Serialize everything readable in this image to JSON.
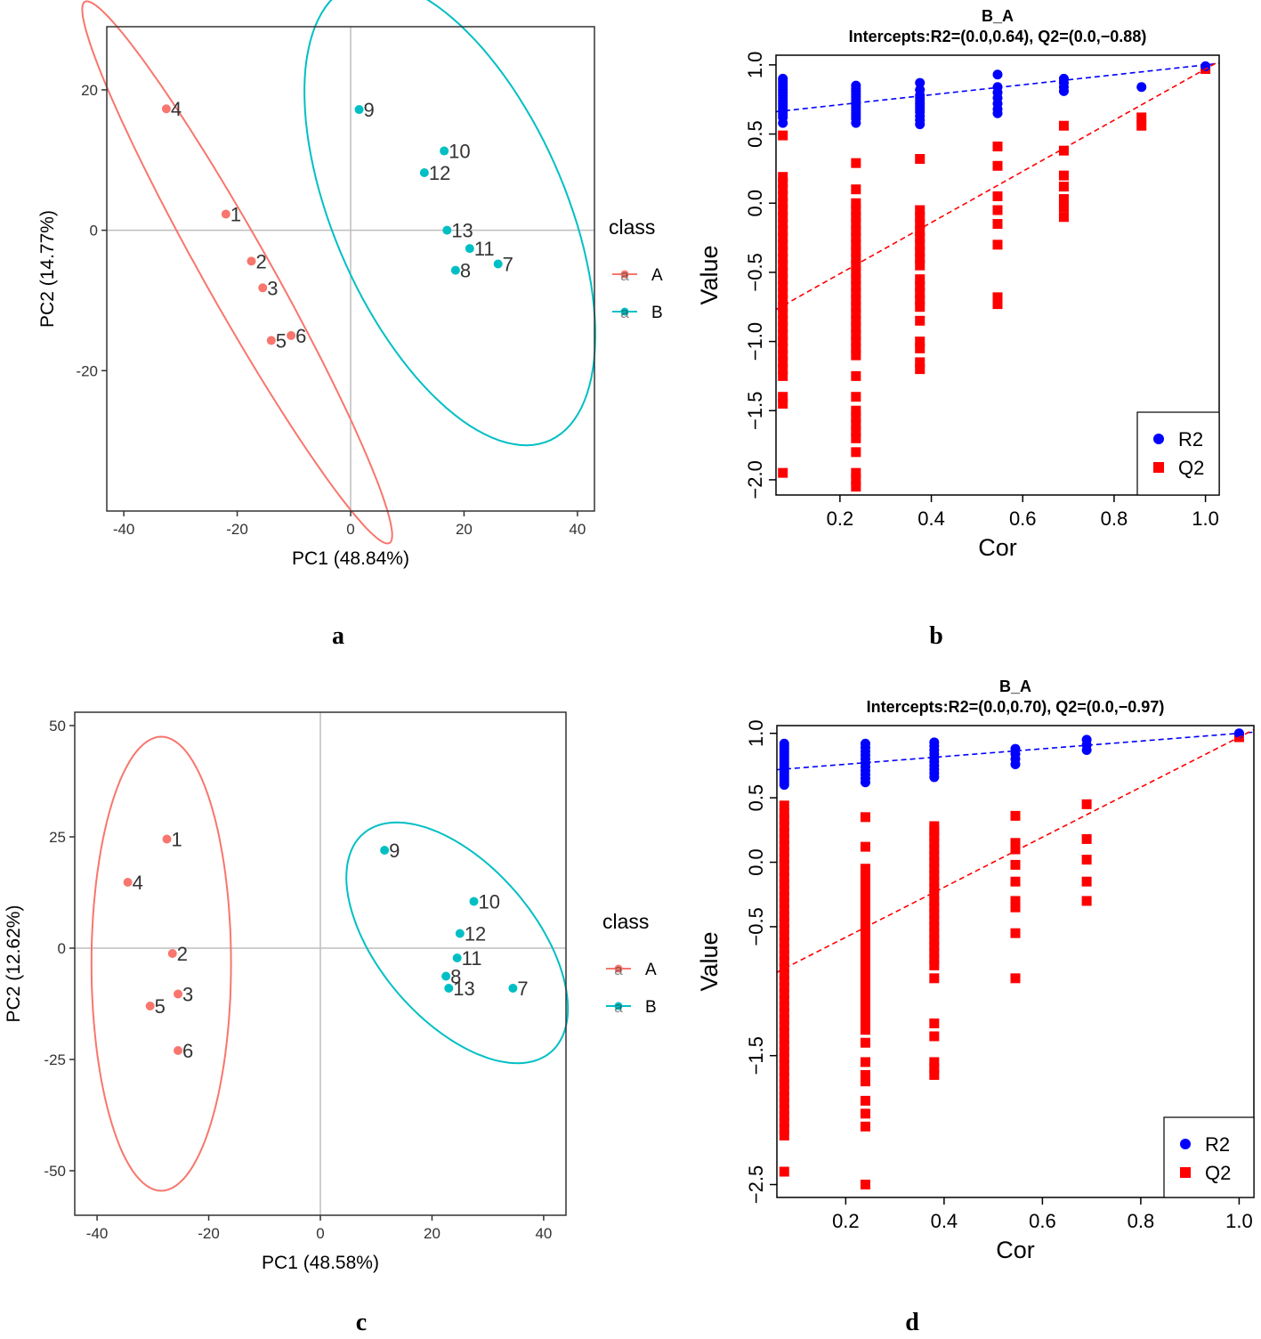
{
  "colors": {
    "class_A": "#F8766D",
    "class_B": "#00BFC4",
    "R2": "#0000FF",
    "Q2": "#FF0000",
    "grid_line": "#BEBEBE"
  },
  "chart_data": [
    {
      "panel": "a",
      "type": "scatter",
      "caption": "a",
      "xlabel": "PC1 (48.84%)",
      "ylabel": "PC2 (14.77%)",
      "xlim": [
        -43,
        43
      ],
      "ylim": [
        -40,
        29
      ],
      "xticks": [
        -40,
        -20,
        0,
        20,
        40
      ],
      "yticks": [
        -20,
        0,
        20
      ],
      "legend": {
        "title": "class",
        "glyph": "a",
        "entries": [
          "A",
          "B"
        ],
        "placement": "right"
      },
      "series": [
        {
          "name": "A",
          "color": "#F8766D",
          "points": [
            {
              "label": "1",
              "x": -22.0,
              "y": 2.3
            },
            {
              "label": "2",
              "x": -17.5,
              "y": -4.4
            },
            {
              "label": "3",
              "x": -15.5,
              "y": -8.2
            },
            {
              "label": "4",
              "x": -32.5,
              "y": 17.3
            },
            {
              "label": "5",
              "x": -14.0,
              "y": -15.7
            },
            {
              "label": "6",
              "x": -10.5,
              "y": -15.0
            }
          ],
          "ellipse": {
            "center": [
              -20,
              -6
            ],
            "semi_axes": [
              47,
              5.5
            ],
            "angle_deg": -55
          }
        },
        {
          "name": "B",
          "color": "#00BFC4",
          "points": [
            {
              "label": "7",
              "x": 26.0,
              "y": -4.8
            },
            {
              "label": "8",
              "x": 18.5,
              "y": -5.7
            },
            {
              "label": "9",
              "x": 1.5,
              "y": 17.2
            },
            {
              "label": "10",
              "x": 16.5,
              "y": 11.3
            },
            {
              "label": "11",
              "x": 21.0,
              "y": -2.6
            },
            {
              "label": "12",
              "x": 13.0,
              "y": 8.2
            },
            {
              "label": "13",
              "x": 17.0,
              "y": 0.0
            }
          ],
          "ellipse": {
            "center": [
              17.5,
              2.4
            ],
            "semi_axes": [
              37,
              19.5
            ],
            "angle_deg": -58
          }
        }
      ]
    },
    {
      "panel": "b",
      "type": "scatter",
      "caption": "b",
      "title": "B_A",
      "subtitle": "Intercepts:R2=(0.0,0.64), Q2=(0.0,−0.88)",
      "xlabel": "Cor",
      "ylabel": "Value",
      "xlim": [
        0.06,
        1.03
      ],
      "ylim": [
        -2.11,
        1.07
      ],
      "xticks": [
        "0.2",
        "0.4",
        "0.6",
        "0.8",
        "1.0"
      ],
      "yticks": [
        "−2.0",
        "−1.5",
        "−1.0",
        "−0.5",
        "0.0",
        "0.5",
        "1.0"
      ],
      "legend": {
        "entries": [
          "R2",
          "Q2"
        ],
        "placement": "bottom-right"
      },
      "regression_lines": [
        {
          "series": "R2",
          "intercept": 0.64,
          "end": [
            1.0,
            1.0
          ]
        },
        {
          "series": "Q2",
          "intercept": -0.88,
          "end": [
            1.0,
            0.97
          ]
        }
      ],
      "series": [
        {
          "name": "R2",
          "marker": "circle",
          "color": "#0000FF",
          "columns": [
            {
              "x": 0.075,
              "y": [
                0.9,
                0.88,
                0.86,
                0.84,
                0.82,
                0.8,
                0.78,
                0.76,
                0.74,
                0.72,
                0.7,
                0.68,
                0.66,
                0.64,
                0.62,
                0.58
              ]
            },
            {
              "x": 0.235,
              "y": [
                0.85,
                0.83,
                0.81,
                0.79,
                0.77,
                0.75,
                0.73,
                0.71,
                0.69,
                0.67,
                0.65,
                0.63,
                0.61,
                0.58
              ]
            },
            {
              "x": 0.375,
              "y": [
                0.87,
                0.82,
                0.78,
                0.76,
                0.74,
                0.72,
                0.7,
                0.68,
                0.66,
                0.63,
                0.6,
                0.57
              ]
            },
            {
              "x": 0.545,
              "y": [
                0.93,
                0.84,
                0.8,
                0.76,
                0.72,
                0.68,
                0.65
              ]
            },
            {
              "x": 0.69,
              "y": [
                0.9,
                0.87,
                0.84,
                0.81
              ]
            },
            {
              "x": 0.86,
              "y": [
                0.84
              ]
            },
            {
              "x": 1.0,
              "y": [
                0.99
              ]
            }
          ]
        },
        {
          "name": "Q2",
          "marker": "square",
          "color": "#FF0000",
          "columns": [
            {
              "x": 0.075,
              "y": [
                0.49,
                0.19,
                0.15,
                0.1,
                0.05,
                0.0,
                -0.05,
                -0.1,
                -0.15,
                -0.2,
                -0.25,
                -0.3,
                -0.35,
                -0.4,
                -0.45,
                -0.5,
                -0.55,
                -0.6,
                -0.65,
                -0.7,
                -0.75,
                -0.8,
                -0.85,
                -0.9,
                -0.95,
                -1.0,
                -1.05,
                -1.1,
                -1.15,
                -1.2,
                -1.25,
                -1.4,
                -1.45,
                -1.95
              ]
            },
            {
              "x": 0.235,
              "y": [
                0.29,
                0.1,
                0.0,
                -0.05,
                -0.1,
                -0.15,
                -0.2,
                -0.25,
                -0.3,
                -0.35,
                -0.4,
                -0.45,
                -0.5,
                -0.55,
                -0.6,
                -0.65,
                -0.7,
                -0.75,
                -0.8,
                -0.85,
                -0.9,
                -0.95,
                -1.0,
                -1.05,
                -1.1,
                -1.25,
                -1.4,
                -1.5,
                -1.55,
                -1.6,
                -1.65,
                -1.7,
                -1.8,
                -1.95,
                -2.0,
                -2.05
              ]
            },
            {
              "x": 0.375,
              "y": [
                0.32,
                -0.05,
                -0.1,
                -0.15,
                -0.2,
                -0.25,
                -0.3,
                -0.35,
                -0.4,
                -0.45,
                -0.55,
                -0.6,
                -0.65,
                -0.7,
                -0.75,
                -0.85,
                -1.0,
                -1.05,
                -1.15,
                -1.2
              ]
            },
            {
              "x": 0.545,
              "y": [
                0.41,
                0.27,
                0.05,
                -0.05,
                -0.15,
                -0.3,
                -0.68,
                -0.73
              ]
            },
            {
              "x": 0.69,
              "y": [
                0.56,
                0.38,
                0.2,
                0.12,
                0.03,
                -0.03,
                -0.1
              ]
            },
            {
              "x": 0.86,
              "y": [
                0.62,
                0.56
              ]
            },
            {
              "x": 1.0,
              "y": [
                0.97
              ]
            }
          ]
        }
      ]
    },
    {
      "panel": "c",
      "type": "scatter",
      "caption": "c",
      "xlabel": "PC1 (48.58%)",
      "ylabel": "PC2 (12.62%)",
      "xlim": [
        -44,
        44
      ],
      "ylim": [
        -60,
        53
      ],
      "xticks": [
        -40,
        -20,
        0,
        20,
        40
      ],
      "yticks": [
        -50,
        -25,
        0,
        25,
        50
      ],
      "legend": {
        "title": "class",
        "glyph": "a",
        "entries": [
          "A",
          "B"
        ],
        "placement": "right"
      },
      "series": [
        {
          "name": "A",
          "color": "#F8766D",
          "points": [
            {
              "label": "1",
              "x": -27.5,
              "y": 24.5
            },
            {
              "label": "2",
              "x": -26.5,
              "y": -1.2
            },
            {
              "label": "3",
              "x": -25.5,
              "y": -10.3
            },
            {
              "label": "4",
              "x": -34.5,
              "y": 14.8
            },
            {
              "label": "5",
              "x": -30.5,
              "y": -13.0
            },
            {
              "label": "6",
              "x": -25.5,
              "y": -23.0
            }
          ],
          "ellipse": {
            "center": [
              -28.5,
              -3.5
            ],
            "semi_axes": [
              12.5,
              51
            ],
            "angle_deg": 0
          }
        },
        {
          "name": "B",
          "color": "#00BFC4",
          "points": [
            {
              "label": "7",
              "x": 34.5,
              "y": -9.0
            },
            {
              "label": "8",
              "x": 22.5,
              "y": -6.3
            },
            {
              "label": "9",
              "x": 11.5,
              "y": 22.0
            },
            {
              "label": "10",
              "x": 27.5,
              "y": 10.5
            },
            {
              "label": "11",
              "x": 24.5,
              "y": -2.2
            },
            {
              "label": "12",
              "x": 25.0,
              "y": 3.3
            },
            {
              "label": "13",
              "x": 23.0,
              "y": -9.0
            }
          ],
          "ellipse": {
            "center": [
              24.5,
              1.2
            ],
            "semi_axes": [
              30,
              15
            ],
            "angle_deg": -60
          }
        }
      ]
    },
    {
      "panel": "d",
      "type": "scatter",
      "caption": "d",
      "title": "B_A",
      "subtitle": "Intercepts:R2=(0.0,0.70), Q2=(0.0,−0.97)",
      "xlabel": "Cor",
      "ylabel": "Value",
      "xlim": [
        0.06,
        1.03
      ],
      "ylim": [
        -2.6,
        1.06
      ],
      "xticks": [
        "0.2",
        "0.4",
        "0.6",
        "0.8",
        "1.0"
      ],
      "yticks": [
        "−2.5",
        "−1.5",
        "−0.5",
        "0.0",
        "0.5",
        "1.0"
      ],
      "legend": {
        "entries": [
          "R2",
          "Q2"
        ],
        "placement": "bottom-right"
      },
      "regression_lines": [
        {
          "series": "R2",
          "intercept": 0.7,
          "end": [
            1.0,
            1.0
          ]
        },
        {
          "series": "Q2",
          "intercept": -0.97,
          "end": [
            1.0,
            0.97
          ]
        }
      ],
      "series": [
        {
          "name": "R2",
          "marker": "circle",
          "color": "#0000FF",
          "columns": [
            {
              "x": 0.075,
              "y": [
                0.92,
                0.9,
                0.88,
                0.86,
                0.84,
                0.82,
                0.8,
                0.78,
                0.76,
                0.74,
                0.72,
                0.7,
                0.68,
                0.66,
                0.64,
                0.62,
                0.6
              ]
            },
            {
              "x": 0.24,
              "y": [
                0.92,
                0.89,
                0.86,
                0.83,
                0.8,
                0.77,
                0.74,
                0.71,
                0.68,
                0.65,
                0.62
              ]
            },
            {
              "x": 0.38,
              "y": [
                0.93,
                0.9,
                0.87,
                0.84,
                0.81,
                0.78,
                0.75,
                0.72,
                0.69,
                0.66
              ]
            },
            {
              "x": 0.545,
              "y": [
                0.88,
                0.84,
                0.8,
                0.76
              ]
            },
            {
              "x": 0.69,
              "y": [
                0.95,
                0.91,
                0.87
              ]
            },
            {
              "x": 1.0,
              "y": [
                1.0
              ]
            }
          ]
        },
        {
          "name": "Q2",
          "marker": "square",
          "color": "#FF0000",
          "columns": [
            {
              "x": 0.075,
              "y": [
                0.44,
                0.38,
                0.33,
                0.28,
                0.23,
                0.18,
                0.13,
                0.08,
                0.03,
                -0.02,
                -0.07,
                -0.12,
                -0.17,
                -0.22,
                -0.27,
                -0.32,
                -0.37,
                -0.42,
                -0.47,
                -0.52,
                -0.57,
                -0.62,
                -0.67,
                -0.72,
                -0.77,
                -0.82,
                -0.87,
                -0.92,
                -0.97,
                -1.02,
                -1.07,
                -1.12,
                -1.17,
                -1.22,
                -1.27,
                -1.32,
                -1.37,
                -1.42,
                -1.47,
                -1.52,
                -1.57,
                -1.62,
                -1.67,
                -1.72,
                -1.77,
                -1.82,
                -1.87,
                -1.92,
                -1.97,
                -2.02,
                -2.07,
                -2.12,
                -2.4
              ]
            },
            {
              "x": 0.24,
              "y": [
                0.35,
                0.12,
                -0.05,
                -0.1,
                -0.15,
                -0.2,
                -0.25,
                -0.3,
                -0.35,
                -0.4,
                -0.45,
                -0.5,
                -0.55,
                -0.6,
                -0.65,
                -0.7,
                -0.75,
                -0.8,
                -0.85,
                -0.9,
                -0.95,
                -1.0,
                -1.05,
                -1.1,
                -1.15,
                -1.2,
                -1.25,
                -1.3,
                -1.4,
                -1.55,
                -1.65,
                -1.7,
                -1.85,
                -1.95,
                -2.05,
                -2.5
              ]
            },
            {
              "x": 0.38,
              "y": [
                0.28,
                0.24,
                0.2,
                0.15,
                0.1,
                0.05,
                0.0,
                -0.05,
                -0.1,
                -0.15,
                -0.2,
                -0.25,
                -0.3,
                -0.35,
                -0.4,
                -0.45,
                -0.5,
                -0.55,
                -0.6,
                -0.65,
                -0.7,
                -0.75,
                -0.8,
                -0.9,
                -1.25,
                -1.35,
                -1.55,
                -1.6,
                -1.65
              ]
            },
            {
              "x": 0.545,
              "y": [
                0.36,
                0.15,
                0.1,
                -0.02,
                -0.15,
                -0.3,
                -0.35,
                -0.55,
                -0.9
              ]
            },
            {
              "x": 0.69,
              "y": [
                0.45,
                0.18,
                0.02,
                -0.15,
                -0.3
              ]
            },
            {
              "x": 1.0,
              "y": [
                0.97
              ]
            }
          ]
        }
      ]
    }
  ]
}
